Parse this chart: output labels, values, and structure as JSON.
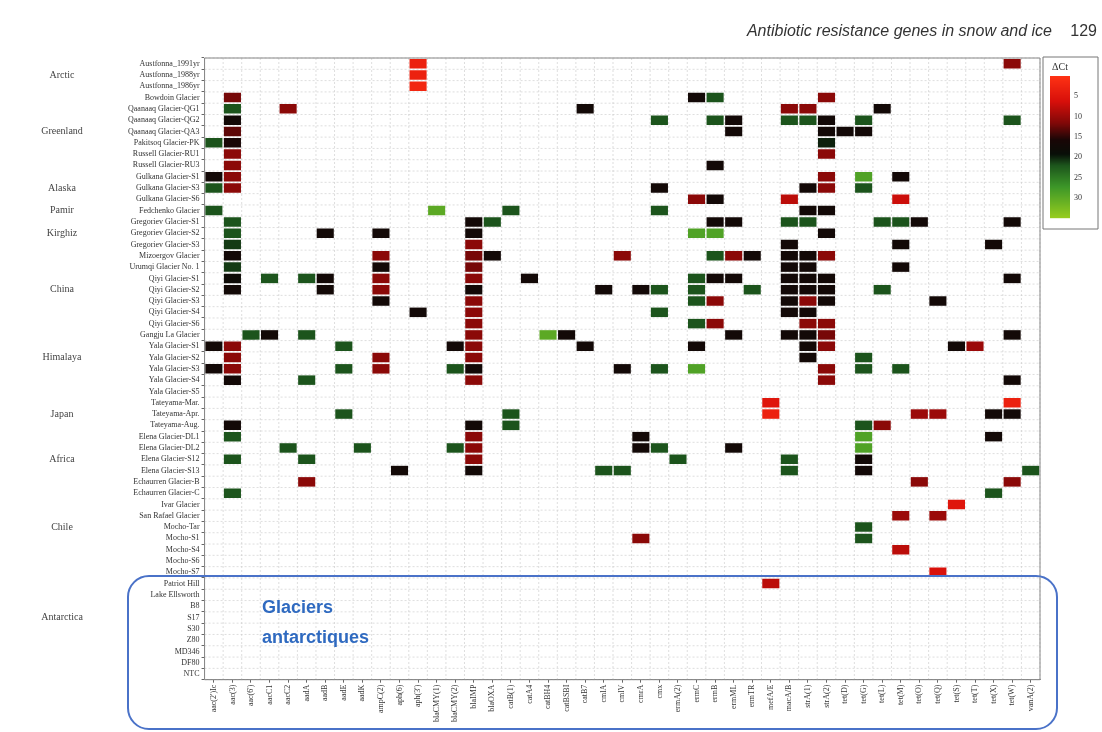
{
  "chart_data": {
    "type": "heatmap",
    "title": "Antibiotic resistance genes in snow and ice",
    "clabel": "ΔCt",
    "clim": [
      0,
      35
    ],
    "cticks": [
      5,
      10,
      15,
      20,
      25,
      30
    ],
    "grid": true,
    "annotations": [
      "129",
      "Glaciers antarctiques"
    ],
    "categories": [
      "aac(2')Ic",
      "aac(3)",
      "aac(6')",
      "aacC1",
      "aacC2",
      "aadA",
      "aadB",
      "aadE",
      "aadK",
      "ampC(2)",
      "aph(6)",
      "aph(3')",
      "blaCMY(1)",
      "blaCMY(2)",
      "blaIMP",
      "blaOXA",
      "catB(1)",
      "catA4",
      "catBH4",
      "catBSBI",
      "catB7",
      "cmlA",
      "cmlV",
      "cmrA",
      "cmx",
      "ermA(2)",
      "ermC",
      "ermB",
      "ermML",
      "ermTR",
      "mefA/E",
      "macA/B",
      "strA(1)",
      "strA(2)",
      "tet(D)",
      "tet(G)",
      "tet(L)",
      "tet(M)",
      "tet(O)",
      "tet(Q)",
      "tet(S)",
      "tet(T)",
      "tet(X)",
      "tet(W)",
      "vanA(2)"
    ],
    "y_categories": [
      "Austfonna_1991yr",
      "Austfonna_1988yr",
      "Austfonna_1986yr",
      "Bowdoin Glacier",
      "Qaanaaq Glacier-QG1",
      "Qaanaaq Glacier-QG2",
      "Qaanaaq Glacier-QA3",
      "Pakitsoq Glacier-PK",
      "Russell Glacier-RU1",
      "Russell Glacier-RU3",
      "Gulkana Glacier-S1",
      "Gulkana Glacier-S3",
      "Gulkana Glacier-S6",
      "Fedchenko Glacier",
      "Gregoriev Glacier-S1",
      "Gregoriev Glacier-S2",
      "Gregoriev Glacier-S3",
      "Mizoergov Glacier",
      "Urumqi Glacier No. 1",
      "Qiyi Glacier-S1",
      "Qiyi Glacier-S2",
      "Qiyi Glacier-S3",
      "Qiyi Glacier-S4",
      "Qiyi Glacier-S6",
      "Gangju La Glacier",
      "Yala Glacier-S1",
      "Yala Glacier-S2",
      "Yala Glacier-S3",
      "Yala Glacier-S4",
      "Yala Glacier-S5",
      "Tateyama-Mar.",
      "Tateyama-Apr.",
      "Tateyama-Aug.",
      "Elena Glacier-DL1",
      "Elena Glacier-DL2",
      "Elena Glacier-S12",
      "Elena Glacier-S13",
      "Echaurren Glacier-B",
      "Echaurren Glacier-C",
      "Ivar Glacier",
      "San Rafael Glacier",
      "Mocho-Tar",
      "Mocho-S1",
      "Mocho-S4",
      "Mocho-S6",
      "Mocho-S7",
      "Patriot Hill",
      "Lake Ellsworth",
      "B8",
      "S17",
      "S30",
      "Z80",
      "MD346",
      "DF80",
      "NTC"
    ],
    "y2_categories": [
      null,
      "Arctic",
      null,
      null,
      null,
      null,
      "Greenland",
      null,
      null,
      null,
      null,
      "Alaska",
      null,
      "Pamir",
      null,
      "Kirghiz",
      null,
      null,
      null,
      null,
      "China",
      null,
      null,
      null,
      null,
      null,
      "Himalaya",
      null,
      null,
      null,
      null,
      "Japan",
      null,
      null,
      null,
      "Africa",
      null,
      null,
      null,
      null,
      null,
      "Chile",
      null,
      null,
      null,
      null,
      null,
      null,
      null,
      "Antarctica",
      null,
      null,
      null,
      null,
      null
    ],
    "cells": [
      [
        null,
        null,
        null,
        null,
        null,
        null,
        null,
        null,
        null,
        null,
        null,
        3,
        null,
        null,
        null,
        null,
        null,
        null,
        null,
        null,
        null,
        null,
        null,
        null,
        null,
        null,
        null,
        null,
        null,
        null,
        null,
        null,
        null,
        null,
        null,
        null,
        null,
        null,
        null,
        null,
        null,
        null,
        null,
        11,
        null
      ],
      [
        null,
        null,
        null,
        null,
        null,
        null,
        null,
        null,
        null,
        null,
        null,
        3,
        null,
        null,
        null,
        null,
        null,
        null,
        null,
        null,
        null,
        null,
        null,
        null,
        null,
        null,
        null,
        null,
        null,
        null,
        null,
        null,
        null,
        null,
        null,
        null,
        null,
        null,
        null,
        null,
        null,
        null,
        null,
        null,
        null
      ],
      [
        null,
        null,
        null,
        null,
        null,
        null,
        null,
        null,
        null,
        null,
        null,
        2,
        null,
        null,
        null,
        null,
        null,
        null,
        null,
        null,
        null,
        null,
        null,
        null,
        null,
        null,
        null,
        null,
        null,
        null,
        null,
        null,
        null,
        null,
        null,
        null,
        null,
        null,
        null,
        null,
        null,
        null,
        null,
        null,
        null
      ],
      [
        null,
        12,
        null,
        null,
        null,
        null,
        null,
        null,
        null,
        null,
        null,
        null,
        null,
        null,
        null,
        null,
        null,
        null,
        null,
        null,
        null,
        null,
        null,
        null,
        null,
        null,
        17,
        22,
        null,
        null,
        null,
        null,
        null,
        11,
        null,
        null,
        null,
        null,
        null,
        null,
        null,
        null,
        null,
        null,
        null
      ],
      [
        null,
        22,
        null,
        null,
        11,
        null,
        null,
        null,
        null,
        null,
        null,
        null,
        null,
        null,
        null,
        null,
        null,
        null,
        null,
        null,
        17,
        null,
        null,
        null,
        null,
        null,
        null,
        null,
        null,
        null,
        null,
        11,
        11,
        null,
        null,
        null,
        17,
        null,
        null,
        null,
        null,
        null,
        null,
        null,
        null
      ],
      [
        null,
        17,
        null,
        null,
        null,
        null,
        null,
        null,
        null,
        null,
        null,
        null,
        null,
        null,
        null,
        null,
        null,
        null,
        null,
        null,
        null,
        null,
        null,
        null,
        22,
        null,
        null,
        22,
        17,
        null,
        null,
        22,
        22,
        17,
        null,
        22,
        null,
        null,
        null,
        null,
        null,
        null,
        null,
        22,
        null
      ],
      [
        null,
        13,
        null,
        null,
        null,
        null,
        null,
        null,
        null,
        null,
        null,
        null,
        null,
        null,
        null,
        null,
        null,
        null,
        null,
        null,
        null,
        null,
        null,
        null,
        null,
        null,
        null,
        null,
        17,
        null,
        null,
        null,
        null,
        17,
        17,
        17,
        null,
        null,
        null,
        null,
        null,
        null,
        null,
        null,
        null
      ],
      [
        22,
        16,
        null,
        null,
        null,
        null,
        null,
        null,
        null,
        null,
        null,
        null,
        null,
        null,
        null,
        null,
        null,
        null,
        null,
        null,
        null,
        null,
        null,
        null,
        null,
        null,
        null,
        null,
        null,
        null,
        null,
        null,
        null,
        20,
        null,
        null,
        null,
        null,
        null,
        null,
        null,
        null,
        null,
        null,
        null
      ],
      [
        null,
        11,
        null,
        null,
        null,
        null,
        null,
        null,
        null,
        null,
        null,
        null,
        null,
        null,
        null,
        null,
        null,
        null,
        null,
        null,
        null,
        null,
        null,
        null,
        null,
        null,
        null,
        null,
        null,
        null,
        null,
        null,
        null,
        11,
        null,
        null,
        null,
        null,
        null,
        null,
        null,
        null,
        null,
        null,
        null
      ],
      [
        null,
        11,
        null,
        null,
        null,
        null,
        null,
        null,
        null,
        null,
        null,
        null,
        null,
        null,
        null,
        null,
        null,
        null,
        null,
        null,
        null,
        null,
        null,
        null,
        null,
        null,
        null,
        17,
        null,
        null,
        null,
        null,
        null,
        null,
        null,
        null,
        null,
        null,
        null,
        null,
        null,
        null,
        null,
        null,
        null
      ],
      [
        17,
        11,
        null,
        null,
        null,
        null,
        null,
        null,
        null,
        null,
        null,
        null,
        null,
        null,
        null,
        null,
        null,
        null,
        null,
        null,
        null,
        null,
        null,
        null,
        null,
        null,
        null,
        null,
        null,
        null,
        null,
        null,
        null,
        11,
        null,
        29,
        null,
        17,
        null,
        null,
        null,
        null,
        null,
        null,
        null
      ],
      [
        22,
        11,
        null,
        null,
        null,
        null,
        null,
        null,
        null,
        null,
        null,
        null,
        null,
        null,
        null,
        null,
        null,
        null,
        null,
        null,
        null,
        null,
        null,
        null,
        17,
        null,
        null,
        null,
        null,
        null,
        null,
        null,
        17,
        11,
        null,
        22,
        null,
        null,
        null,
        null,
        null,
        null,
        null,
        null,
        null
      ],
      [
        null,
        null,
        null,
        null,
        null,
        null,
        null,
        null,
        null,
        null,
        null,
        null,
        null,
        null,
        null,
        null,
        null,
        null,
        null,
        null,
        null,
        null,
        null,
        null,
        null,
        null,
        11,
        17,
        null,
        null,
        null,
        8,
        null,
        null,
        null,
        null,
        null,
        7,
        null,
        null,
        null,
        null,
        null,
        null,
        null
      ],
      [
        22,
        null,
        null,
        null,
        null,
        null,
        null,
        null,
        null,
        null,
        null,
        null,
        30,
        null,
        null,
        null,
        22,
        null,
        null,
        null,
        null,
        null,
        null,
        null,
        22,
        null,
        null,
        null,
        null,
        null,
        null,
        null,
        17,
        17,
        null,
        null,
        null,
        null,
        null,
        null,
        null,
        null,
        null,
        null,
        null
      ],
      [
        null,
        22,
        null,
        null,
        null,
        null,
        null,
        null,
        null,
        null,
        null,
        null,
        null,
        null,
        17,
        22,
        null,
        null,
        null,
        null,
        null,
        null,
        null,
        null,
        null,
        null,
        null,
        17,
        17,
        null,
        null,
        22,
        22,
        null,
        null,
        null,
        22,
        22,
        17,
        null,
        null,
        null,
        null,
        17,
        null
      ],
      [
        null,
        22,
        null,
        null,
        null,
        null,
        17,
        null,
        null,
        17,
        null,
        null,
        null,
        null,
        17,
        null,
        null,
        null,
        null,
        null,
        null,
        null,
        null,
        null,
        null,
        null,
        29,
        29,
        null,
        null,
        null,
        null,
        null,
        17,
        null,
        null,
        null,
        null,
        null,
        null,
        null,
        null,
        null,
        null,
        null
      ],
      [
        null,
        21,
        null,
        null,
        null,
        null,
        null,
        null,
        null,
        null,
        null,
        null,
        null,
        null,
        11,
        null,
        null,
        null,
        null,
        null,
        null,
        null,
        null,
        null,
        null,
        null,
        null,
        null,
        null,
        null,
        null,
        17,
        null,
        null,
        null,
        null,
        null,
        17,
        null,
        null,
        null,
        null,
        17,
        null,
        null
      ],
      [
        null,
        17,
        null,
        null,
        null,
        null,
        null,
        null,
        null,
        11,
        null,
        null,
        null,
        null,
        12,
        17,
        null,
        null,
        null,
        null,
        null,
        null,
        11,
        null,
        null,
        null,
        null,
        22,
        11,
        17,
        null,
        17,
        17,
        11,
        null,
        null,
        null,
        null,
        null,
        null,
        null,
        null,
        null,
        null,
        null
      ],
      [
        null,
        21,
        null,
        null,
        null,
        null,
        null,
        null,
        null,
        17,
        null,
        null,
        null,
        null,
        12,
        null,
        null,
        null,
        null,
        null,
        null,
        null,
        null,
        null,
        null,
        null,
        null,
        null,
        null,
        null,
        null,
        17,
        17,
        null,
        null,
        null,
        null,
        17,
        null,
        null,
        null,
        null,
        null,
        null,
        null
      ],
      [
        null,
        18,
        null,
        22,
        null,
        22,
        17,
        null,
        null,
        11,
        null,
        null,
        null,
        null,
        11,
        null,
        null,
        17,
        null,
        null,
        null,
        null,
        null,
        null,
        null,
        null,
        22,
        17,
        17,
        null,
        null,
        17,
        17,
        17,
        null,
        null,
        null,
        null,
        null,
        null,
        null,
        null,
        null,
        17,
        null
      ],
      [
        null,
        17,
        null,
        null,
        null,
        null,
        17,
        null,
        null,
        11,
        null,
        null,
        null,
        null,
        17,
        null,
        null,
        null,
        null,
        null,
        null,
        17,
        null,
        17,
        22,
        null,
        22,
        null,
        null,
        22,
        null,
        17,
        17,
        17,
        null,
        null,
        22,
        null,
        null,
        null,
        null,
        null,
        null,
        null,
        null
      ],
      [
        null,
        null,
        null,
        null,
        null,
        null,
        null,
        null,
        null,
        17,
        null,
        null,
        null,
        null,
        11,
        null,
        null,
        null,
        null,
        null,
        null,
        null,
        null,
        null,
        null,
        null,
        22,
        11,
        null,
        null,
        null,
        17,
        11,
        17,
        null,
        null,
        null,
        null,
        null,
        17,
        null,
        null,
        null,
        null,
        null
      ],
      [
        null,
        null,
        null,
        null,
        null,
        null,
        null,
        null,
        null,
        null,
        null,
        17,
        null,
        null,
        11,
        null,
        null,
        null,
        null,
        null,
        null,
        null,
        null,
        null,
        22,
        null,
        null,
        null,
        null,
        null,
        null,
        17,
        17,
        null,
        null,
        null,
        null,
        null,
        null,
        null,
        null,
        null,
        null,
        null,
        null
      ],
      [
        null,
        null,
        null,
        null,
        null,
        null,
        null,
        null,
        null,
        null,
        null,
        null,
        null,
        null,
        11,
        null,
        null,
        null,
        null,
        null,
        null,
        null,
        null,
        null,
        null,
        null,
        22,
        11,
        null,
        null,
        null,
        null,
        11,
        11,
        null,
        null,
        null,
        null,
        null,
        null,
        null,
        null,
        null,
        null,
        null
      ],
      [
        null,
        null,
        22,
        17,
        null,
        22,
        null,
        null,
        null,
        null,
        null,
        null,
        null,
        null,
        11,
        null,
        null,
        null,
        30,
        17,
        null,
        null,
        null,
        null,
        null,
        null,
        null,
        null,
        17,
        null,
        null,
        17,
        17,
        12,
        null,
        null,
        null,
        null,
        null,
        null,
        null,
        null,
        null,
        17,
        null
      ],
      [
        17,
        11,
        null,
        null,
        null,
        null,
        null,
        22,
        null,
        null,
        null,
        null,
        null,
        17,
        11,
        null,
        null,
        null,
        null,
        null,
        17,
        null,
        null,
        null,
        null,
        null,
        17,
        null,
        null,
        null,
        null,
        null,
        17,
        11,
        null,
        null,
        null,
        null,
        null,
        null,
        17,
        10,
        null,
        null,
        null
      ],
      [
        null,
        11,
        null,
        null,
        null,
        null,
        null,
        null,
        null,
        11,
        null,
        null,
        null,
        null,
        11,
        null,
        null,
        null,
        null,
        null,
        null,
        null,
        null,
        null,
        null,
        null,
        null,
        null,
        null,
        null,
        null,
        null,
        17,
        null,
        null,
        22,
        null,
        null,
        null,
        null,
        null,
        null,
        null,
        null,
        null
      ],
      [
        17,
        11,
        null,
        null,
        null,
        null,
        null,
        22,
        null,
        11,
        null,
        null,
        null,
        22,
        17,
        null,
        null,
        null,
        null,
        null,
        null,
        null,
        17,
        null,
        22,
        null,
        29,
        null,
        null,
        null,
        null,
        null,
        null,
        11,
        null,
        22,
        null,
        22,
        null,
        null,
        null,
        null,
        null,
        null,
        null
      ],
      [
        null,
        17,
        null,
        null,
        null,
        22,
        null,
        null,
        null,
        null,
        null,
        null,
        null,
        null,
        11,
        null,
        null,
        null,
        null,
        null,
        null,
        null,
        null,
        null,
        null,
        null,
        null,
        null,
        null,
        null,
        null,
        null,
        null,
        11,
        null,
        null,
        null,
        null,
        null,
        null,
        null,
        null,
        null,
        17,
        null
      ],
      [
        null,
        null,
        null,
        null,
        null,
        null,
        null,
        null,
        null,
        null,
        null,
        null,
        null,
        null,
        null,
        null,
        null,
        null,
        null,
        null,
        null,
        null,
        null,
        null,
        null,
        null,
        null,
        null,
        null,
        null,
        null,
        null,
        null,
        null,
        null,
        null,
        null,
        null,
        null,
        null,
        null,
        null,
        null,
        null,
        null
      ],
      [
        null,
        null,
        null,
        null,
        null,
        null,
        null,
        null,
        null,
        null,
        null,
        null,
        null,
        null,
        null,
        null,
        null,
        null,
        null,
        null,
        null,
        null,
        null,
        null,
        null,
        null,
        null,
        null,
        null,
        null,
        5,
        null,
        null,
        null,
        null,
        null,
        null,
        null,
        null,
        null,
        null,
        null,
        null,
        3,
        null
      ],
      [
        null,
        null,
        null,
        null,
        null,
        null,
        null,
        22,
        null,
        null,
        null,
        null,
        null,
        null,
        null,
        null,
        22,
        null,
        null,
        null,
        null,
        null,
        null,
        null,
        null,
        null,
        null,
        null,
        null,
        null,
        3,
        null,
        null,
        null,
        null,
        null,
        null,
        null,
        10,
        10,
        null,
        null,
        17,
        17,
        null
      ],
      [
        null,
        17,
        null,
        null,
        null,
        null,
        null,
        null,
        null,
        null,
        null,
        null,
        null,
        null,
        17,
        null,
        22,
        null,
        null,
        null,
        null,
        null,
        null,
        null,
        null,
        null,
        null,
        null,
        null,
        null,
        null,
        null,
        null,
        null,
        null,
        22,
        11,
        null,
        null,
        null,
        null,
        null,
        null,
        null,
        null
      ],
      [
        null,
        22,
        null,
        null,
        null,
        null,
        null,
        null,
        null,
        null,
        null,
        null,
        null,
        null,
        11,
        null,
        null,
        null,
        null,
        null,
        null,
        null,
        null,
        17,
        null,
        null,
        null,
        null,
        null,
        null,
        null,
        null,
        null,
        null,
        null,
        29,
        null,
        null,
        null,
        null,
        null,
        null,
        17,
        null,
        null
      ],
      [
        null,
        null,
        null,
        null,
        22,
        null,
        null,
        null,
        22,
        null,
        null,
        null,
        null,
        22,
        11,
        null,
        null,
        null,
        null,
        null,
        null,
        null,
        null,
        17,
        22,
        null,
        null,
        null,
        17,
        null,
        null,
        null,
        null,
        null,
        null,
        29,
        null,
        null,
        null,
        null,
        null,
        null,
        null,
        null,
        null
      ],
      [
        null,
        22,
        null,
        null,
        null,
        22,
        null,
        null,
        null,
        null,
        null,
        null,
        null,
        null,
        11,
        null,
        null,
        null,
        null,
        null,
        null,
        null,
        null,
        null,
        null,
        22,
        null,
        null,
        null,
        null,
        null,
        22,
        null,
        null,
        null,
        17,
        null,
        null,
        null,
        null,
        null,
        null,
        null,
        null,
        null
      ],
      [
        null,
        null,
        null,
        null,
        null,
        null,
        null,
        null,
        null,
        null,
        17,
        null,
        null,
        null,
        17,
        null,
        null,
        null,
        null,
        null,
        null,
        22,
        22,
        null,
        null,
        null,
        null,
        null,
        null,
        null,
        null,
        22,
        null,
        null,
        null,
        17,
        null,
        null,
        null,
        null,
        null,
        null,
        null,
        null,
        22
      ],
      [
        null,
        null,
        null,
        null,
        null,
        11,
        null,
        null,
        null,
        null,
        null,
        null,
        null,
        null,
        null,
        null,
        null,
        null,
        null,
        null,
        null,
        null,
        null,
        null,
        null,
        null,
        null,
        null,
        null,
        null,
        null,
        null,
        null,
        null,
        null,
        null,
        null,
        null,
        11,
        null,
        null,
        null,
        null,
        11,
        null
      ],
      [
        null,
        22,
        null,
        null,
        null,
        null,
        null,
        null,
        null,
        null,
        null,
        null,
        null,
        null,
        null,
        null,
        null,
        null,
        null,
        null,
        null,
        null,
        null,
        null,
        null,
        null,
        null,
        null,
        null,
        null,
        null,
        null,
        null,
        null,
        null,
        null,
        null,
        null,
        null,
        null,
        null,
        null,
        22,
        null,
        null
      ],
      [
        null,
        null,
        null,
        null,
        null,
        null,
        null,
        null,
        null,
        null,
        null,
        null,
        null,
        null,
        null,
        null,
        null,
        null,
        null,
        null,
        null,
        null,
        null,
        null,
        null,
        null,
        null,
        null,
        null,
        null,
        null,
        null,
        null,
        null,
        null,
        null,
        null,
        null,
        null,
        null,
        5,
        null,
        null,
        null,
        null
      ],
      [
        null,
        null,
        null,
        null,
        null,
        null,
        null,
        null,
        null,
        null,
        null,
        null,
        null,
        null,
        null,
        null,
        null,
        null,
        null,
        null,
        null,
        null,
        null,
        null,
        null,
        null,
        null,
        null,
        null,
        null,
        null,
        null,
        null,
        null,
        null,
        null,
        null,
        10,
        null,
        10,
        null,
        null,
        null,
        null,
        null
      ],
      [
        null,
        null,
        null,
        null,
        null,
        null,
        null,
        null,
        null,
        null,
        null,
        null,
        null,
        null,
        null,
        null,
        null,
        null,
        null,
        null,
        null,
        null,
        null,
        null,
        null,
        null,
        null,
        null,
        null,
        null,
        null,
        null,
        null,
        null,
        null,
        22,
        null,
        null,
        null,
        null,
        null,
        null,
        null,
        null,
        null
      ],
      [
        null,
        null,
        null,
        null,
        null,
        null,
        null,
        null,
        null,
        null,
        null,
        null,
        null,
        null,
        null,
        null,
        null,
        null,
        null,
        null,
        null,
        null,
        null,
        11,
        null,
        null,
        null,
        null,
        null,
        null,
        null,
        null,
        null,
        null,
        null,
        22,
        null,
        null,
        null,
        null,
        null,
        null,
        null,
        null,
        null
      ],
      [
        null,
        null,
        null,
        null,
        null,
        null,
        null,
        null,
        null,
        null,
        null,
        null,
        null,
        null,
        null,
        null,
        null,
        null,
        null,
        null,
        null,
        null,
        null,
        null,
        null,
        null,
        null,
        null,
        null,
        null,
        null,
        null,
        null,
        null,
        null,
        null,
        null,
        8,
        null,
        null,
        null,
        null,
        null,
        null,
        null
      ],
      [
        null,
        null,
        null,
        null,
        null,
        null,
        null,
        null,
        null,
        null,
        null,
        null,
        null,
        null,
        null,
        null,
        null,
        null,
        null,
        null,
        null,
        null,
        null,
        null,
        null,
        null,
        null,
        null,
        null,
        null,
        null,
        null,
        null,
        null,
        null,
        null,
        null,
        null,
        null,
        null,
        null,
        null,
        null,
        null,
        null
      ],
      [
        null,
        null,
        null,
        null,
        null,
        null,
        null,
        null,
        null,
        null,
        null,
        null,
        null,
        null,
        null,
        null,
        null,
        null,
        null,
        null,
        null,
        null,
        null,
        null,
        null,
        null,
        null,
        null,
        null,
        null,
        null,
        null,
        null,
        null,
        null,
        null,
        null,
        null,
        null,
        6,
        null,
        null,
        null,
        null,
        null
      ],
      [
        null,
        null,
        null,
        null,
        null,
        null,
        null,
        null,
        null,
        null,
        null,
        null,
        null,
        null,
        null,
        null,
        null,
        null,
        null,
        null,
        null,
        null,
        null,
        null,
        null,
        null,
        null,
        null,
        null,
        null,
        8,
        null,
        null,
        null,
        null,
        null,
        null,
        null,
        null,
        null,
        null,
        null,
        null,
        null,
        null
      ],
      [
        null,
        null,
        null,
        null,
        null,
        null,
        null,
        null,
        null,
        null,
        null,
        null,
        null,
        null,
        null,
        null,
        null,
        null,
        null,
        null,
        null,
        null,
        null,
        null,
        null,
        null,
        null,
        null,
        null,
        null,
        null,
        null,
        null,
        null,
        null,
        null,
        null,
        null,
        null,
        null,
        null,
        null,
        null,
        null,
        null
      ],
      [
        null,
        null,
        null,
        null,
        null,
        null,
        null,
        null,
        null,
        null,
        null,
        null,
        null,
        null,
        null,
        null,
        null,
        null,
        null,
        null,
        null,
        null,
        null,
        null,
        null,
        null,
        null,
        null,
        null,
        null,
        null,
        null,
        null,
        null,
        null,
        null,
        null,
        null,
        null,
        null,
        null,
        null,
        null,
        null,
        null
      ],
      [
        null,
        null,
        null,
        null,
        null,
        null,
        null,
        null,
        null,
        null,
        null,
        null,
        null,
        null,
        null,
        null,
        null,
        null,
        null,
        null,
        null,
        null,
        null,
        null,
        null,
        null,
        null,
        null,
        null,
        null,
        null,
        null,
        null,
        null,
        null,
        null,
        null,
        null,
        null,
        null,
        null,
        null,
        null,
        null,
        null
      ],
      [
        null,
        null,
        null,
        null,
        null,
        null,
        null,
        null,
        null,
        null,
        null,
        null,
        null,
        null,
        null,
        null,
        null,
        null,
        null,
        null,
        null,
        null,
        null,
        null,
        null,
        null,
        null,
        null,
        null,
        null,
        null,
        null,
        null,
        null,
        null,
        null,
        null,
        null,
        null,
        null,
        null,
        null,
        null,
        null,
        null
      ],
      [
        null,
        null,
        null,
        null,
        null,
        null,
        null,
        null,
        null,
        null,
        null,
        null,
        null,
        null,
        null,
        null,
        null,
        null,
        null,
        null,
        null,
        null,
        null,
        null,
        null,
        null,
        null,
        null,
        null,
        null,
        null,
        null,
        null,
        null,
        null,
        null,
        null,
        null,
        null,
        null,
        null,
        null,
        null,
        null,
        null
      ],
      [
        null,
        null,
        null,
        null,
        null,
        null,
        null,
        null,
        null,
        null,
        null,
        null,
        null,
        null,
        null,
        null,
        null,
        null,
        null,
        null,
        null,
        null,
        null,
        null,
        null,
        null,
        null,
        null,
        null,
        null,
        null,
        null,
        null,
        null,
        null,
        null,
        null,
        null,
        null,
        null,
        null,
        null,
        null,
        null,
        null
      ],
      [
        null,
        null,
        null,
        null,
        null,
        null,
        null,
        null,
        null,
        null,
        null,
        null,
        null,
        null,
        null,
        null,
        null,
        null,
        null,
        null,
        null,
        null,
        null,
        null,
        null,
        null,
        null,
        null,
        null,
        null,
        null,
        null,
        null,
        null,
        null,
        null,
        null,
        null,
        null,
        null,
        null,
        null,
        null,
        null,
        null
      ],
      [
        null,
        null,
        null,
        null,
        null,
        null,
        null,
        null,
        null,
        null,
        null,
        null,
        null,
        null,
        null,
        null,
        null,
        null,
        null,
        null,
        null,
        null,
        null,
        null,
        null,
        null,
        null,
        null,
        null,
        null,
        null,
        null,
        null,
        null,
        null,
        null,
        null,
        null,
        null,
        null,
        null,
        null,
        null,
        null,
        null
      ]
    ]
  }
}
